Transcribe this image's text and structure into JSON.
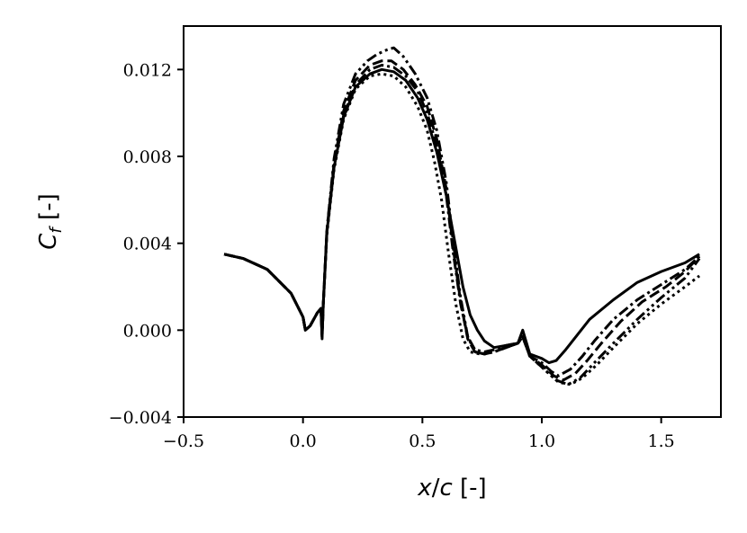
{
  "chart_data": {
    "type": "line",
    "xlabel": "x/c [-]",
    "ylabel": "C_f [-]",
    "xlim": [
      -0.5,
      1.75
    ],
    "ylim": [
      -0.004,
      0.014
    ],
    "x_ticks": [
      -0.5,
      0.0,
      0.5,
      1.0,
      1.5
    ],
    "x_tick_labels": [
      "−0.5",
      "0.0",
      "0.5",
      "1.0",
      "1.5"
    ],
    "y_ticks": [
      -0.004,
      0.0,
      0.004,
      0.008,
      0.012
    ],
    "y_tick_labels": [
      "−0.004",
      "0.000",
      "0.004",
      "0.008",
      "0.012"
    ],
    "grid": false,
    "legend": "none",
    "line_color": "#000000",
    "series": [
      {
        "style": "solid",
        "x": [
          -0.33,
          -0.25,
          -0.15,
          -0.05,
          0.0,
          0.01,
          0.03,
          0.06,
          0.075,
          0.08,
          0.085,
          0.1,
          0.13,
          0.17,
          0.22,
          0.28,
          0.33,
          0.38,
          0.43,
          0.48,
          0.52,
          0.56,
          0.6,
          0.64,
          0.67,
          0.7,
          0.73,
          0.76,
          0.8,
          0.85,
          0.9,
          0.92,
          0.95,
          1.0,
          1.03,
          1.06,
          1.1,
          1.15,
          1.2,
          1.3,
          1.4,
          1.5,
          1.6,
          1.66
        ],
        "y": [
          0.0035,
          0.0033,
          0.0028,
          0.0017,
          0.0006,
          0.0,
          0.0002,
          0.0008,
          0.001,
          -0.0004,
          0.0012,
          0.0045,
          0.0075,
          0.0098,
          0.0112,
          0.0118,
          0.012,
          0.0119,
          0.0115,
          0.0107,
          0.0097,
          0.0082,
          0.0062,
          0.0038,
          0.002,
          0.0007,
          0.0,
          -0.0005,
          -0.0008,
          -0.0007,
          -0.0006,
          0.0,
          -0.0011,
          -0.0013,
          -0.0015,
          -0.0014,
          -0.0009,
          -0.0002,
          0.0005,
          0.0014,
          0.0022,
          0.0027,
          0.0031,
          0.0035
        ]
      },
      {
        "style": "dashdot",
        "x": [
          -0.33,
          -0.25,
          -0.15,
          -0.05,
          0.0,
          0.01,
          0.03,
          0.06,
          0.075,
          0.08,
          0.085,
          0.1,
          0.13,
          0.17,
          0.22,
          0.28,
          0.33,
          0.38,
          0.43,
          0.48,
          0.52,
          0.56,
          0.6,
          0.63,
          0.66,
          0.69,
          0.72,
          0.76,
          0.8,
          0.85,
          0.9,
          0.92,
          0.95,
          1.0,
          1.04,
          1.07,
          1.12,
          1.17,
          1.22,
          1.3,
          1.4,
          1.5,
          1.6,
          1.66
        ],
        "y": [
          0.0035,
          0.0033,
          0.0028,
          0.0017,
          0.0006,
          0.0,
          0.0002,
          0.0008,
          0.001,
          -0.0003,
          0.0012,
          0.0045,
          0.0076,
          0.0099,
          0.0113,
          0.012,
          0.0122,
          0.0121,
          0.0117,
          0.011,
          0.01,
          0.0085,
          0.0062,
          0.0035,
          0.0012,
          -0.0003,
          -0.0009,
          -0.001,
          -0.0009,
          -0.0007,
          -0.0006,
          -0.0003,
          -0.0012,
          -0.0015,
          -0.0019,
          -0.0021,
          -0.0018,
          -0.0012,
          -0.0005,
          0.0005,
          0.0014,
          0.0021,
          0.0028,
          0.0034
        ]
      },
      {
        "style": "dashed",
        "x": [
          -0.33,
          -0.25,
          -0.15,
          -0.05,
          0.0,
          0.01,
          0.03,
          0.06,
          0.075,
          0.08,
          0.085,
          0.1,
          0.13,
          0.17,
          0.22,
          0.28,
          0.33,
          0.37,
          0.42,
          0.47,
          0.52,
          0.56,
          0.6,
          0.63,
          0.66,
          0.69,
          0.72,
          0.76,
          0.8,
          0.85,
          0.9,
          0.92,
          0.95,
          1.0,
          1.05,
          1.09,
          1.14,
          1.19,
          1.25,
          1.33,
          1.42,
          1.52,
          1.6,
          1.66
        ],
        "y": [
          0.0035,
          0.0033,
          0.0028,
          0.0017,
          0.0006,
          0.0,
          0.0002,
          0.0008,
          0.001,
          -0.0003,
          0.0012,
          0.0046,
          0.0077,
          0.0101,
          0.0115,
          0.0122,
          0.0124,
          0.0124,
          0.012,
          0.0113,
          0.0103,
          0.0088,
          0.0065,
          0.0037,
          0.0013,
          -0.0004,
          -0.001,
          -0.0011,
          -0.001,
          -0.0008,
          -0.0006,
          -0.0003,
          -0.0012,
          -0.0016,
          -0.0021,
          -0.0023,
          -0.002,
          -0.0014,
          -0.0006,
          0.0004,
          0.0013,
          0.002,
          0.0027,
          0.0034
        ]
      },
      {
        "style": "dashdotdot",
        "x": [
          -0.33,
          -0.25,
          -0.15,
          -0.05,
          0.0,
          0.01,
          0.03,
          0.06,
          0.075,
          0.08,
          0.085,
          0.1,
          0.13,
          0.17,
          0.22,
          0.27,
          0.31,
          0.35,
          0.38,
          0.42,
          0.47,
          0.52,
          0.56,
          0.6,
          0.63,
          0.66,
          0.69,
          0.72,
          0.76,
          0.8,
          0.85,
          0.9,
          0.92,
          0.95,
          1.0,
          1.06,
          1.11,
          1.16,
          1.22,
          1.3,
          1.4,
          1.5,
          1.6,
          1.66
        ],
        "y": [
          0.0035,
          0.0033,
          0.0028,
          0.0017,
          0.0006,
          0.0,
          0.0002,
          0.0008,
          0.001,
          -0.0003,
          0.0012,
          0.0046,
          0.0079,
          0.0104,
          0.0118,
          0.0124,
          0.0127,
          0.0129,
          0.013,
          0.0126,
          0.0118,
          0.0107,
          0.0092,
          0.0068,
          0.004,
          0.0015,
          -0.0003,
          -0.001,
          -0.0011,
          -0.001,
          -0.0008,
          -0.0006,
          -0.0003,
          -0.0012,
          -0.0017,
          -0.0023,
          -0.0025,
          -0.0022,
          -0.0015,
          -0.0006,
          0.0005,
          0.0015,
          0.0024,
          0.0033
        ]
      },
      {
        "style": "dotted",
        "x": [
          -0.33,
          -0.25,
          -0.15,
          -0.05,
          0.0,
          0.01,
          0.03,
          0.06,
          0.075,
          0.08,
          0.085,
          0.1,
          0.13,
          0.17,
          0.22,
          0.28,
          0.33,
          0.38,
          0.43,
          0.48,
          0.52,
          0.55,
          0.58,
          0.61,
          0.64,
          0.67,
          0.7,
          0.74,
          0.8,
          0.85,
          0.9,
          0.92,
          0.95,
          1.0,
          1.07,
          1.12,
          1.17,
          1.23,
          1.3,
          1.4,
          1.5,
          1.6,
          1.66
        ],
        "y": [
          0.0035,
          0.0033,
          0.0028,
          0.0017,
          0.0006,
          0.0,
          0.0002,
          0.0008,
          0.001,
          -0.0003,
          0.0012,
          0.0044,
          0.0074,
          0.0097,
          0.0111,
          0.0117,
          0.0118,
          0.0117,
          0.0112,
          0.0103,
          0.0092,
          0.0078,
          0.006,
          0.0035,
          0.0012,
          -0.0004,
          -0.001,
          -0.0011,
          -0.001,
          -0.0008,
          -0.0006,
          -0.0003,
          -0.0012,
          -0.0017,
          -0.0024,
          -0.0025,
          -0.0022,
          -0.0016,
          -0.0008,
          0.0003,
          0.0012,
          0.002,
          0.0025
        ]
      }
    ]
  }
}
